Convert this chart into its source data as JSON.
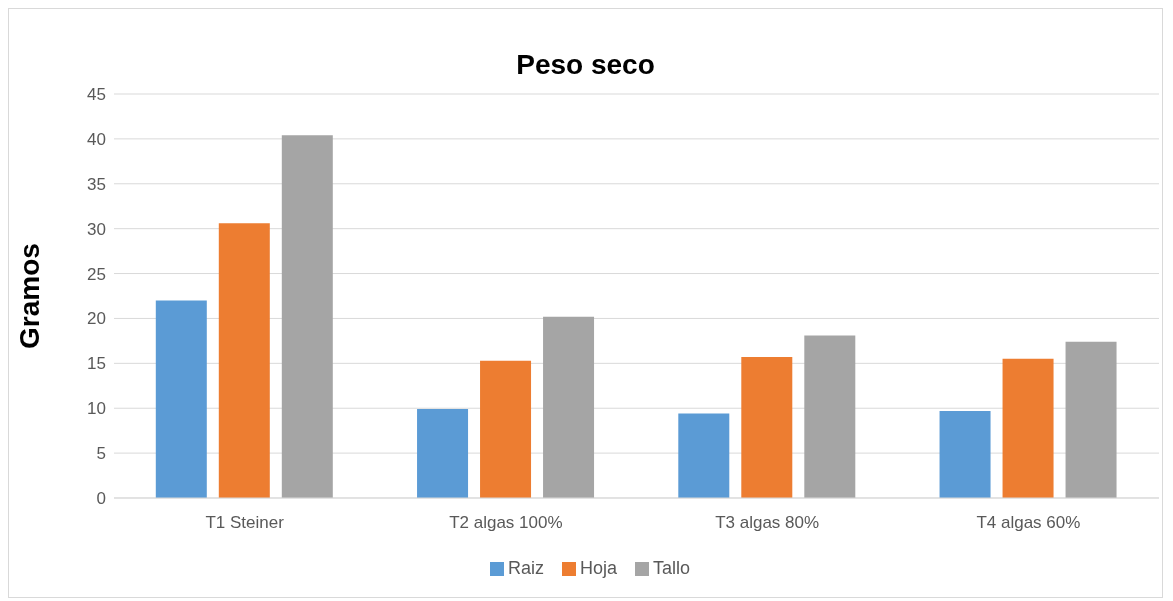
{
  "chart_data": {
    "type": "bar",
    "title": "Peso seco",
    "ylabel": "Gramos",
    "categories": [
      "T1 Steiner",
      "T2 algas 100%",
      "T3 algas 80%",
      "T4 algas 60%"
    ],
    "series": [
      {
        "name": "Raiz",
        "color": "#5b9bd5",
        "values": [
          22.0,
          9.9,
          9.4,
          9.7
        ]
      },
      {
        "name": "Hoja",
        "color": "#ed7d31",
        "values": [
          30.6,
          15.3,
          15.7,
          15.5
        ]
      },
      {
        "name": "Tallo",
        "color": "#a5a5a5",
        "values": [
          40.4,
          20.2,
          18.1,
          17.4
        ]
      }
    ],
    "ylim": [
      0,
      45
    ],
    "yticks": [
      0,
      5,
      10,
      15,
      20,
      25,
      30,
      35,
      40,
      45
    ],
    "grid": "y",
    "legend": "bottom"
  }
}
